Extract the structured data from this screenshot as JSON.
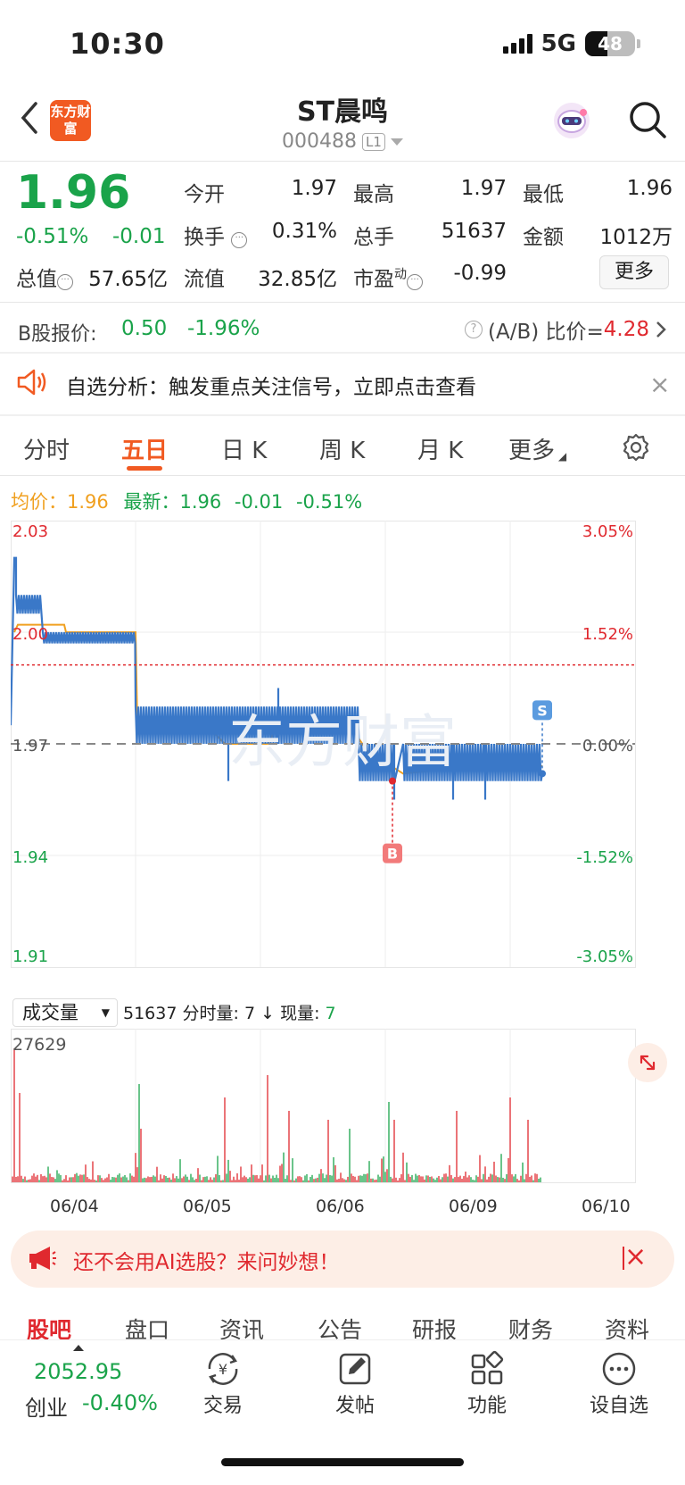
{
  "status_bar": {
    "time": "10:30",
    "network": "5G",
    "battery": "48"
  },
  "header": {
    "title": "ST晨鸣",
    "code": "000488",
    "level_badge": "L1",
    "logo_text": "东方财富"
  },
  "quote": {
    "price": "1.96",
    "pct_change": "-0.51%",
    "abs_change": "-0.01",
    "fields": [
      {
        "label": "今开",
        "value": "1.97"
      },
      {
        "label": "最高",
        "value": "1.97"
      },
      {
        "label": "最低",
        "value": "1.96"
      },
      {
        "label": "换手",
        "value": "0.31%"
      },
      {
        "label": "总手",
        "value": "51637"
      },
      {
        "label": "金额",
        "value": "1012万"
      },
      {
        "label": "总值",
        "value": "57.65亿"
      },
      {
        "label": "流值",
        "value": "32.85亿"
      },
      {
        "label": "市盈",
        "sup": "动",
        "value": "-0.99"
      }
    ],
    "more_label": "更多"
  },
  "b_share": {
    "label": "B股报价:",
    "price": "0.50",
    "pct": "-1.96%",
    "ratio_label": "(A/B) 比价=",
    "ratio_value": "4.28"
  },
  "alert": {
    "text": "自选分析：触发重点关注信号，立即点击查看"
  },
  "chart_tabs": [
    "分时",
    "五日",
    "日 K",
    "周 K",
    "月 K",
    "更多"
  ],
  "active_chart_tab": "五日",
  "chart_header": {
    "avg_label": "均价：",
    "avg_value": "1.96",
    "latest_label": "最新：",
    "latest_value": "1.96",
    "latest_chg": "-0.01",
    "latest_pct": "-0.51%"
  },
  "chart_data": {
    "type": "line",
    "price_axis": [
      "2.03",
      "2.00",
      "1.97",
      "1.94",
      "1.91"
    ],
    "pct_axis": [
      "3.05%",
      "1.52%",
      "0.00%",
      "-1.52%",
      "-3.05%"
    ],
    "ylim": [
      1.91,
      2.03
    ],
    "prev_close": 1.97,
    "x": [
      "06/04",
      "06/05",
      "06/06",
      "06/09",
      "06/10"
    ],
    "markers": [
      {
        "label": "B",
        "value": 1.96
      },
      {
        "label": "S",
        "value": 1.96
      }
    ],
    "volume_max": "27629",
    "colors": {
      "price": "#3a78c8",
      "avg": "#f0a020",
      "up": "#e0292f",
      "down": "#1aa34a"
    }
  },
  "volume_header": {
    "selector": "成交量",
    "total": "51637",
    "tick_label": "分时量:",
    "tick_value": "7",
    "arrow": "↓",
    "now_label": "现量:",
    "now_value": "7"
  },
  "ai_banner": {
    "text": "还不会用AI选股？来问妙想！"
  },
  "sub_tabs": [
    "股吧",
    "盘口",
    "资讯",
    "公告",
    "研报",
    "财务",
    "资料"
  ],
  "bottom_bar": {
    "index_value": "2052.95",
    "index_name": "创业",
    "index_pct": "-0.40%",
    "nav": [
      {
        "label": "交易",
        "icon": "yen-cycle-icon"
      },
      {
        "label": "发帖",
        "icon": "edit-icon"
      },
      {
        "label": "功能",
        "icon": "grid-icon"
      },
      {
        "label": "设自选",
        "icon": "more-dots-icon"
      }
    ]
  }
}
